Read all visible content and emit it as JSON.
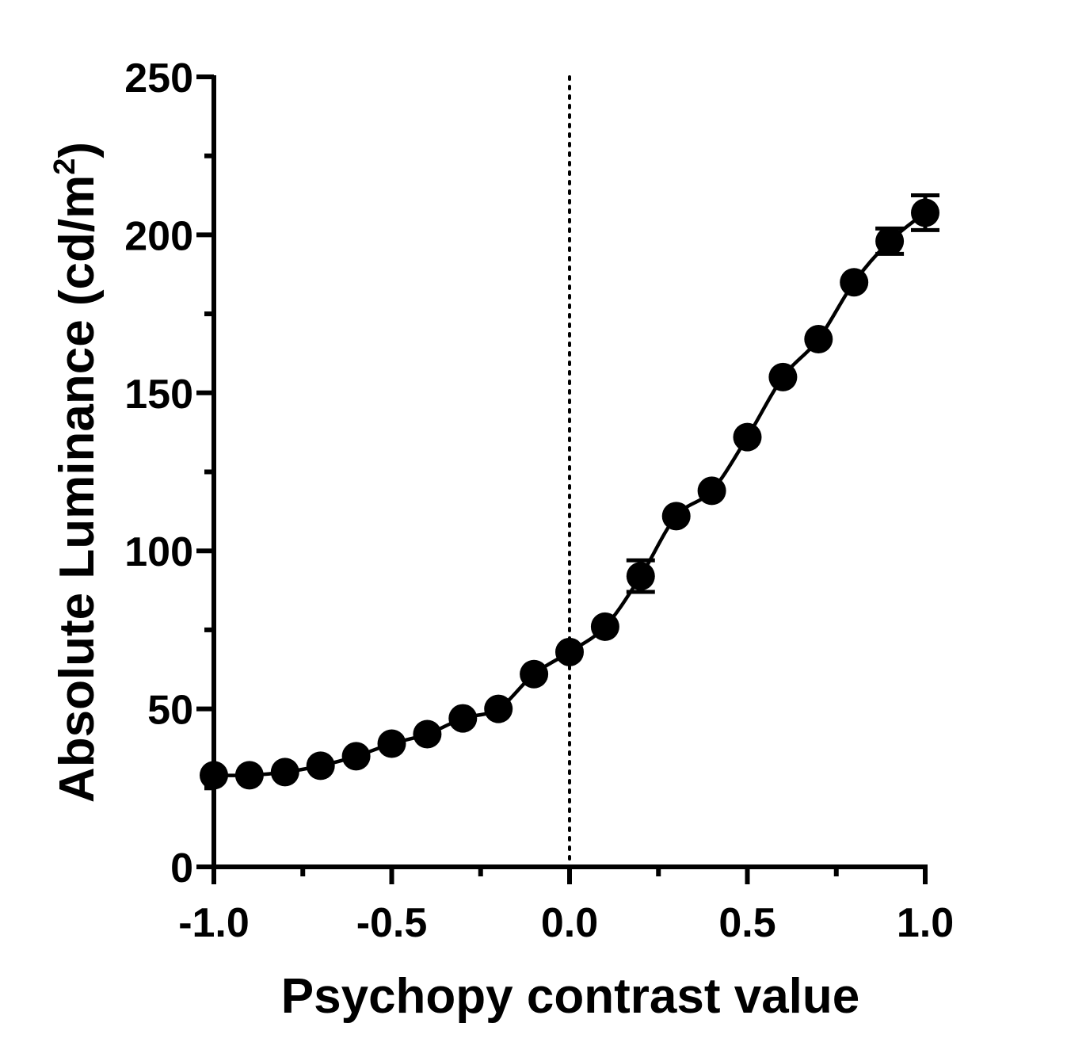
{
  "chart_data": {
    "type": "scatter",
    "xlabel": "Psychopy contrast value",
    "ylabel": {
      "main": "Absolute Luminance (cd/m",
      "superscript": "2",
      "close": ")"
    },
    "xlim": [
      -1.0,
      1.0
    ],
    "ylim": [
      0,
      250
    ],
    "xticks": [
      "-1.0",
      "-0.5",
      "0.0",
      "0.5",
      "1.0"
    ],
    "yticks": [
      "0",
      "50",
      "100",
      "150",
      "200",
      "250"
    ],
    "reference_line": {
      "x": 0.0,
      "style": "dotted"
    },
    "fit_curve": true,
    "grid": false,
    "series": [
      {
        "x": [
          -1.0,
          -0.9,
          -0.8,
          -0.7,
          -0.6,
          -0.5,
          -0.4,
          -0.3,
          -0.2,
          -0.1,
          0.0,
          0.1,
          0.2,
          0.3,
          0.4,
          0.5,
          0.6,
          0.7,
          0.8,
          0.9,
          1.0
        ],
        "y": [
          29,
          29,
          30,
          32,
          35,
          39,
          42,
          47,
          50,
          61,
          68,
          76,
          92,
          111,
          119,
          136,
          155,
          167,
          185,
          198,
          207
        ],
        "error": [
          0,
          0,
          0,
          0,
          0,
          0,
          0,
          0,
          0,
          0,
          0,
          0,
          5,
          0,
          0,
          0,
          0,
          0,
          0,
          4,
          5.5
        ]
      }
    ]
  }
}
